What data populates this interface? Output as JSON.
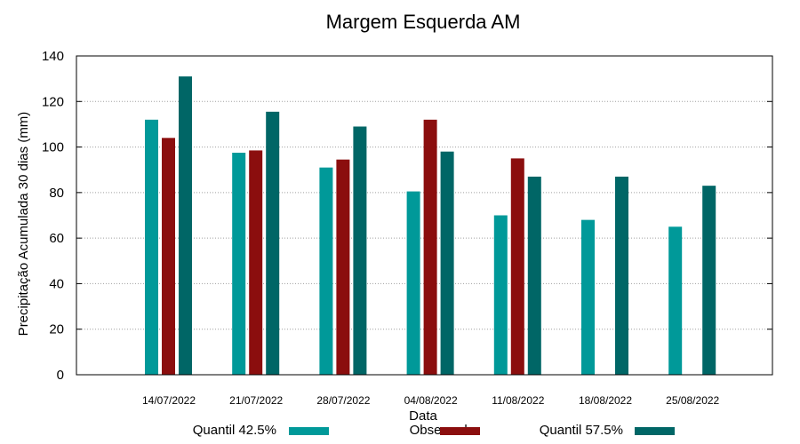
{
  "chart_data": {
    "type": "bar",
    "title": "Margem Esquerda AM",
    "xlabel": "Data",
    "ylabel": "Precipitação Acumulada 30 dias (mm)",
    "ylim": [
      0,
      140
    ],
    "yticks": [
      0,
      20,
      40,
      60,
      80,
      100,
      120,
      140
    ],
    "grid": true,
    "legend_position": "bottom",
    "categories": [
      "14/07/2022",
      "21/07/2022",
      "28/07/2022",
      "04/08/2022",
      "11/08/2022",
      "18/08/2022",
      "25/08/2022"
    ],
    "series": [
      {
        "name": "Quantil 42.5%",
        "color": "#009999",
        "values": [
          112,
          97.5,
          91,
          80.5,
          70,
          68,
          65
        ]
      },
      {
        "name": "Observado",
        "color": "#8b0e0e",
        "values": [
          104,
          98.5,
          94.5,
          112,
          95,
          null,
          null
        ]
      },
      {
        "name": "Quantil 57.5%",
        "color": "#006666",
        "values": [
          131,
          115.5,
          109,
          98,
          87,
          87,
          83
        ]
      }
    ]
  }
}
